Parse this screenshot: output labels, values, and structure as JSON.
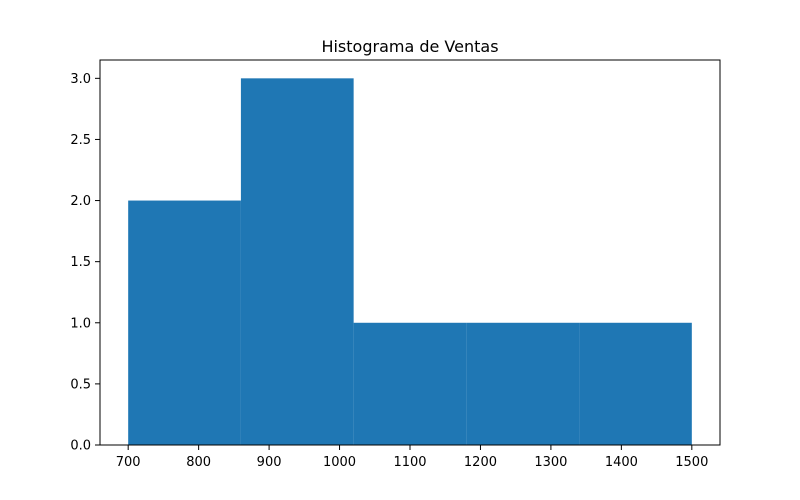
{
  "chart_data": {
    "type": "bar",
    "subtype": "histogram",
    "title": "Histograma de Ventas",
    "xlabel": "",
    "ylabel": "",
    "bins": [
      {
        "start": 700,
        "end": 860,
        "count": 2
      },
      {
        "start": 860,
        "end": 1020,
        "count": 3
      },
      {
        "start": 1020,
        "end": 1180,
        "count": 1
      },
      {
        "start": 1180,
        "end": 1340,
        "count": 1
      },
      {
        "start": 1340,
        "end": 1500,
        "count": 1
      }
    ],
    "xlim": [
      660,
      1540
    ],
    "ylim": [
      0,
      3.15
    ],
    "xticks": [
      700,
      800,
      900,
      1000,
      1100,
      1200,
      1300,
      1400,
      1500
    ],
    "yticks": [
      0.0,
      0.5,
      1.0,
      1.5,
      2.0,
      2.5,
      3.0
    ],
    "xtick_labels": [
      "700",
      "800",
      "900",
      "1000",
      "1100",
      "1200",
      "1300",
      "1400",
      "1500"
    ],
    "ytick_labels": [
      "0.0",
      "0.5",
      "1.0",
      "1.5",
      "2.0",
      "2.5",
      "3.0"
    ],
    "grid": false,
    "legend": "none",
    "bar_color": "#1f77b4"
  }
}
